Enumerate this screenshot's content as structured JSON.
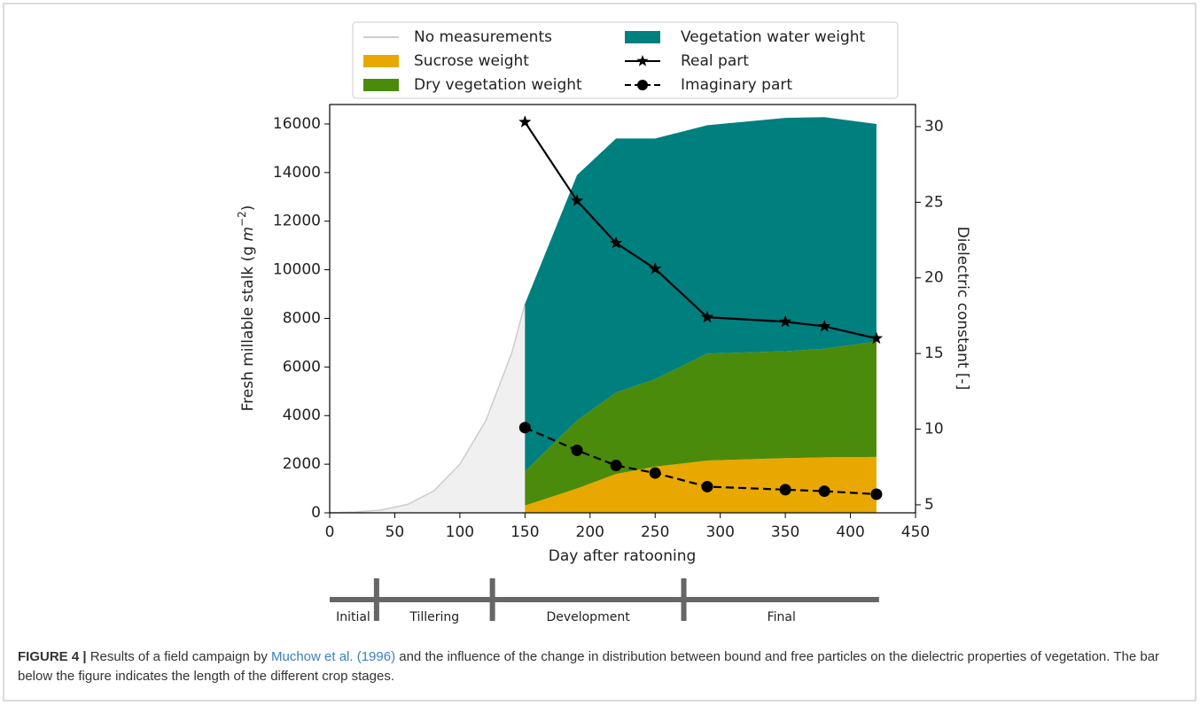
{
  "chart_data": {
    "type": "stacked-area-line",
    "xlabel": "Day after ratooning",
    "ylabel": {
      "text": "Fresh millable stalk (g ",
      "unit": "m",
      "exponent": "−2",
      "close": ")"
    },
    "y2label": "Dielectric constant [-]",
    "xlim": [
      0,
      450
    ],
    "xticks": [
      0,
      50,
      100,
      150,
      200,
      250,
      300,
      350,
      400,
      450
    ],
    "ylim": [
      0,
      16800
    ],
    "yticks": [
      0,
      2000,
      4000,
      6000,
      8000,
      10000,
      12000,
      14000,
      16000
    ],
    "y2lim": [
      4.47,
      31.46
    ],
    "y2ticks": [
      5,
      10,
      15,
      20,
      25,
      30
    ],
    "series": [
      {
        "name": "No measurements",
        "kind": "area-outline",
        "color": "#cccccc",
        "fill": "#f0f0f0",
        "x": [
          0,
          20,
          40,
          60,
          80,
          100,
          120,
          140,
          150
        ],
        "values": [
          0,
          30,
          120,
          350,
          900,
          2000,
          3800,
          6600,
          8600
        ]
      },
      {
        "name": "Sucrose weight",
        "kind": "stack",
        "color": "#e8a800",
        "x": [
          150,
          190,
          220,
          250,
          290,
          350,
          380,
          420
        ],
        "values": [
          300,
          1000,
          1600,
          1900,
          2150,
          2250,
          2280,
          2300
        ]
      },
      {
        "name": "Dry vegetation weight",
        "kind": "stack",
        "color": "#4b8b0b",
        "x": [
          150,
          190,
          220,
          250,
          290,
          350,
          380,
          420
        ],
        "values": [
          1400,
          2800,
          3350,
          3600,
          4400,
          4400,
          4470,
          4750
        ]
      },
      {
        "name": "Vegetation water weight",
        "kind": "stack",
        "color": "#007f7f",
        "x": [
          150,
          190,
          220,
          250,
          290,
          350,
          380,
          420
        ],
        "values": [
          6900,
          10100,
          10450,
          9900,
          9400,
          9600,
          9530,
          8950
        ]
      },
      {
        "name": "Real part",
        "kind": "line",
        "axis": "y2",
        "marker": "star",
        "dashed": false,
        "color": "#000000",
        "x": [
          150,
          190,
          220,
          250,
          290,
          350,
          380,
          420
        ],
        "values": [
          30.3,
          25.1,
          22.3,
          20.6,
          17.4,
          17.1,
          16.8,
          16.0
        ]
      },
      {
        "name": "Imaginary part",
        "kind": "line",
        "axis": "y2",
        "marker": "circle",
        "dashed": true,
        "color": "#000000",
        "x": [
          150,
          190,
          220,
          250,
          290,
          350,
          380,
          420
        ],
        "values": [
          10.1,
          8.6,
          7.6,
          7.1,
          6.2,
          6.0,
          5.9,
          5.7
        ]
      }
    ],
    "stages": [
      {
        "label": "Initial",
        "start": 0,
        "end": 36
      },
      {
        "label": "Tillering",
        "start": 36,
        "end": 125
      },
      {
        "label": "Development",
        "start": 125,
        "end": 272
      },
      {
        "label": "Final",
        "start": 272,
        "end": 422
      }
    ]
  },
  "caption": {
    "label": "FIGURE 4 |",
    "text1": " Results of a field campaign by ",
    "link": "Muchow et al. (1996)",
    "text2": " and the influence of the change in distribution between bound and free particles on the dielectric properties of vegetation. The bar below the figure indicates the length of the different crop stages."
  }
}
